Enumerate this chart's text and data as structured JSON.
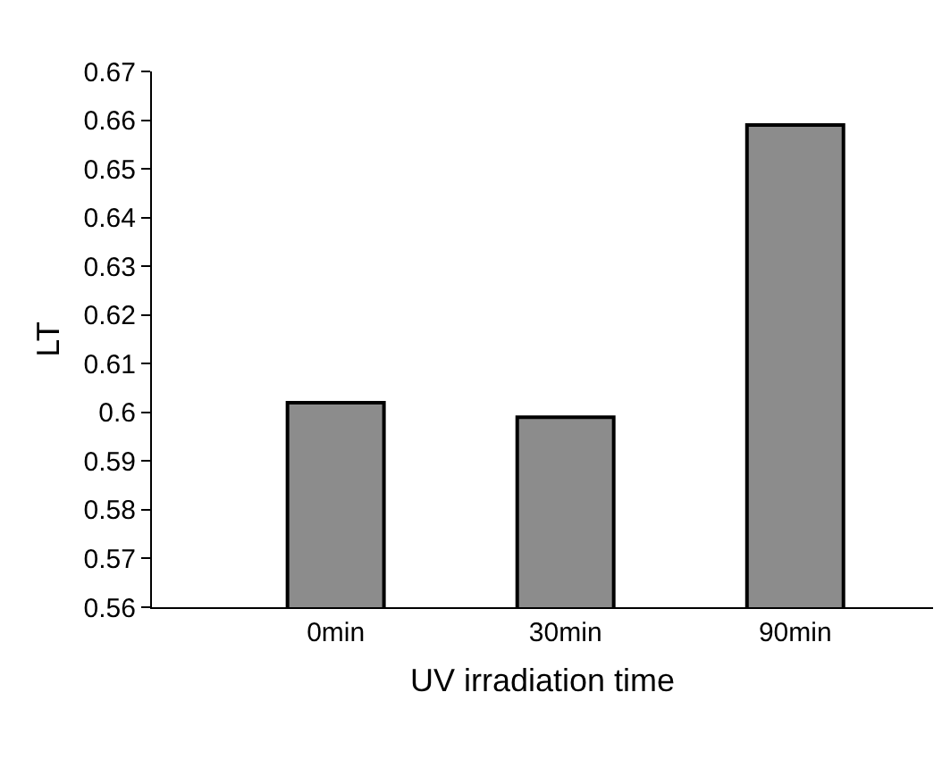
{
  "chart_data": {
    "type": "bar",
    "xlabel": "UV irradiation time",
    "ylabel": "LT",
    "categories": [
      "0min",
      "30min",
      "90min"
    ],
    "values": [
      0.602,
      0.599,
      0.659
    ],
    "color": "#8c8c8c",
    "ylim": [
      0.56,
      0.67
    ],
    "yticks": [
      0.56,
      0.57,
      0.58,
      0.59,
      {
        "value": 0.6,
        "label": "0.6"
      },
      0.61,
      0.62,
      0.63,
      0.64,
      0.65,
      0.66,
      0.67
    ]
  }
}
